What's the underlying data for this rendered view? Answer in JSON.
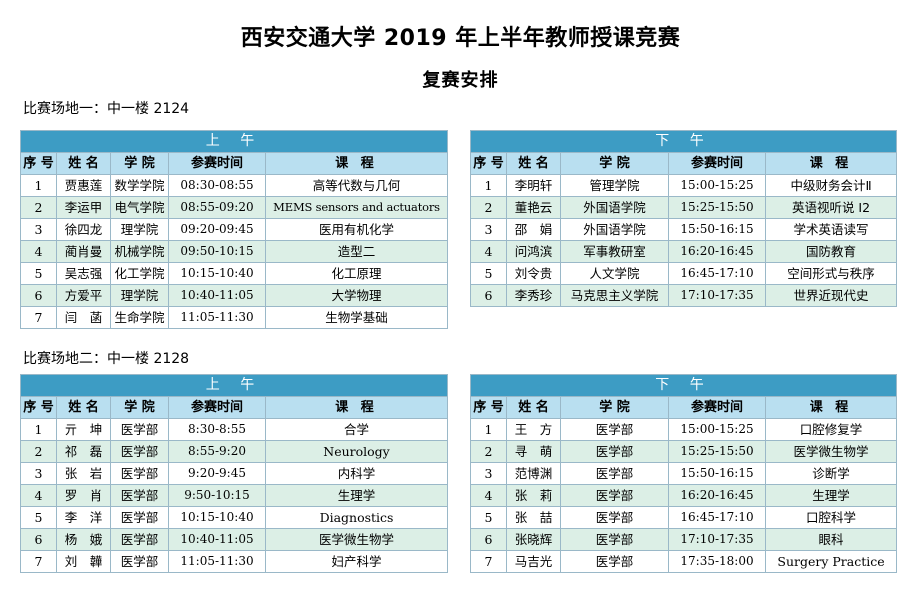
{
  "title": "西安交通大学 2019 年上半年教师授课竞赛",
  "subtitle": "复赛安排",
  "columns": {
    "seq": "序 号",
    "name": "姓 名",
    "college": "学 院",
    "time": "参赛时间",
    "course": "课 程"
  },
  "venues": [
    {
      "label": "比赛场地一：中一楼 2124",
      "sessions": [
        {
          "period": "上 午",
          "rows": [
            {
              "seq": "1",
              "name": "贾惠莲",
              "college": "数学学院",
              "time": "08:30-08:55",
              "course": "高等代数与几何"
            },
            {
              "seq": "2",
              "name": "李运甲",
              "college": "电气学院",
              "time": "08:55-09:20",
              "course": "MEMS sensors and actuators"
            },
            {
              "seq": "3",
              "name": "徐四龙",
              "college": "理学院",
              "time": "09:20-09:45",
              "course": "医用有机化学"
            },
            {
              "seq": "4",
              "name": "蔺肖曼",
              "college": "机械学院",
              "time": "09:50-10:15",
              "course": "造型二"
            },
            {
              "seq": "5",
              "name": "吴志强",
              "college": "化工学院",
              "time": "10:15-10:40",
              "course": "化工原理"
            },
            {
              "seq": "6",
              "name": "方爱平",
              "college": "理学院",
              "time": "10:40-11:05",
              "course": "大学物理"
            },
            {
              "seq": "7",
              "name": "闫　菡",
              "college": "生命学院",
              "time": "11:05-11:30",
              "course": "生物学基础"
            }
          ]
        },
        {
          "period": "下 午",
          "rows": [
            {
              "seq": "1",
              "name": "李明轩",
              "college": "管理学院",
              "time": "15:00-15:25",
              "course": "中级财务会计Ⅱ"
            },
            {
              "seq": "2",
              "name": "董艳云",
              "college": "外国语学院",
              "time": "15:25-15:50",
              "course": "英语视听说 I2"
            },
            {
              "seq": "3",
              "name": "邵　娟",
              "college": "外国语学院",
              "time": "15:50-16:15",
              "course": "学术英语读写"
            },
            {
              "seq": "4",
              "name": "问鸿滨",
              "college": "军事教研室",
              "time": "16:20-16:45",
              "course": "国防教育"
            },
            {
              "seq": "5",
              "name": "刘令贵",
              "college": "人文学院",
              "time": "16:45-17:10",
              "course": "空间形式与秩序"
            },
            {
              "seq": "6",
              "name": "李秀珍",
              "college": "马克思主义学院",
              "time": "17:10-17:35",
              "course": "世界近现代史"
            }
          ]
        }
      ]
    },
    {
      "label": "比赛场地二：中一楼 2128",
      "sessions": [
        {
          "period": "上 午",
          "rows": [
            {
              "seq": "1",
              "name": "亓　坤",
              "college": "医学部",
              "time": "8:30-8:55",
              "course": "合学"
            },
            {
              "seq": "2",
              "name": "祁　磊",
              "college": "医学部",
              "time": "8:55-9:20",
              "course": "Neurology"
            },
            {
              "seq": "3",
              "name": "张　岩",
              "college": "医学部",
              "time": "9:20-9:45",
              "course": "内科学"
            },
            {
              "seq": "4",
              "name": "罗　肖",
              "college": "医学部",
              "time": "9:50-10:15",
              "course": "生理学"
            },
            {
              "seq": "5",
              "name": "李　洋",
              "college": "医学部",
              "time": "10:15-10:40",
              "course": "Diagnostics"
            },
            {
              "seq": "6",
              "name": "杨　娥",
              "college": "医学部",
              "time": "10:40-11:05",
              "course": "医学微生物学"
            },
            {
              "seq": "7",
              "name": "刘　韡",
              "college": "医学部",
              "time": "11:05-11:30",
              "course": "妇产科学"
            }
          ]
        },
        {
          "period": "下 午",
          "rows": [
            {
              "seq": "1",
              "name": "王　方",
              "college": "医学部",
              "time": "15:00-15:25",
              "course": "口腔修复学"
            },
            {
              "seq": "2",
              "name": "寻　萌",
              "college": "医学部",
              "time": "15:25-15:50",
              "course": "医学微生物学"
            },
            {
              "seq": "3",
              "name": "范博渊",
              "college": "医学部",
              "time": "15:50-16:15",
              "course": "诊断学"
            },
            {
              "seq": "4",
              "name": "张　莉",
              "college": "医学部",
              "time": "16:20-16:45",
              "course": "生理学"
            },
            {
              "seq": "5",
              "name": "张　喆",
              "college": "医学部",
              "time": "16:45-17:10",
              "course": "口腔科学"
            },
            {
              "seq": "6",
              "name": "张晓辉",
              "college": "医学部",
              "time": "17:10-17:35",
              "course": "眼科"
            },
            {
              "seq": "7",
              "name": "马吉光",
              "college": "医学部",
              "time": "17:35-18:00",
              "course": "Surgery Practice"
            }
          ]
        }
      ]
    }
  ]
}
